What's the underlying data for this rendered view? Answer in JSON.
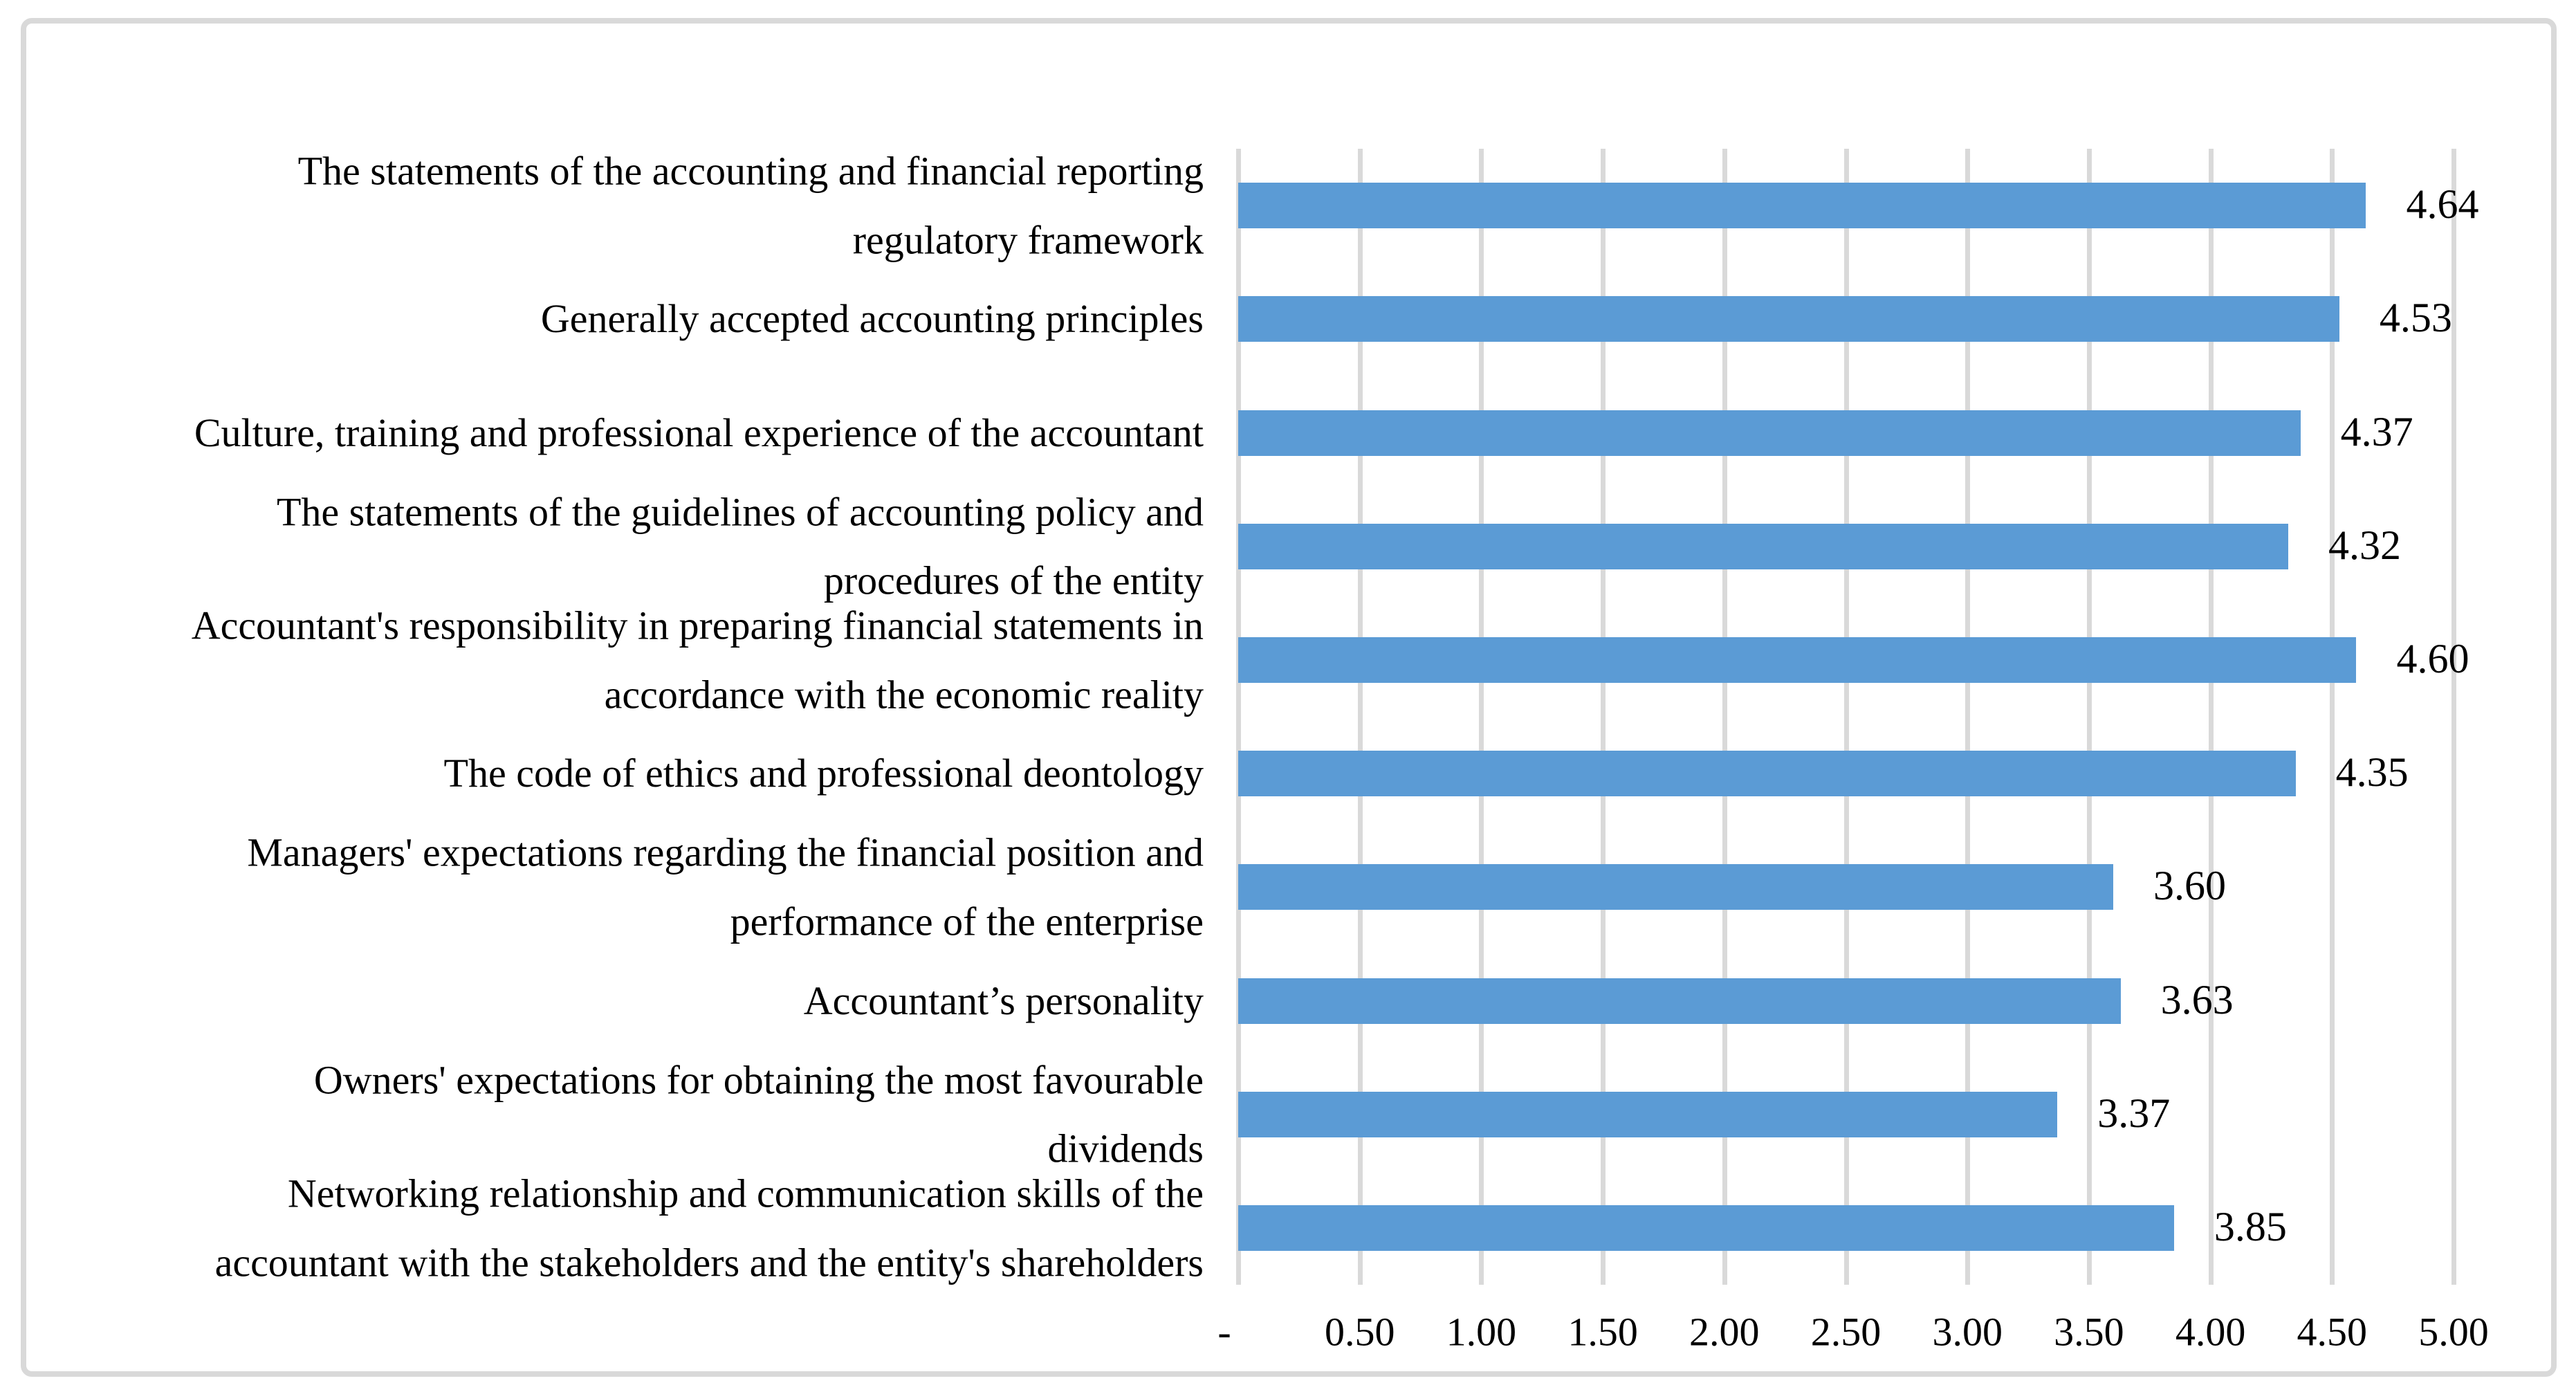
{
  "figure": {
    "background_color": "#FFFFFF",
    "border_color": "#D9D9D9",
    "text_color": "#000000"
  },
  "chart_data": {
    "type": "bar",
    "orientation": "horizontal",
    "title": "",
    "xlabel": "",
    "ylabel": "",
    "grid": "vertical",
    "legend": "none",
    "xlim": [
      0,
      5
    ],
    "x_tick_step": 0.5,
    "x_ticks": [
      "-",
      "0.50",
      "1.00",
      "1.50",
      "2.00",
      "2.50",
      "3.00",
      "3.50",
      "4.00",
      "4.50",
      "5.00"
    ],
    "bar_color": "#5B9BD5",
    "gridline_color": "#D9D9D9",
    "categories": [
      "The statements of the accounting and financial reporting\nregulatory framework",
      "Generally accepted accounting principles",
      "Culture, training and professional experience of the accountant",
      "The statements of the guidelines of accounting policy and\nprocedures of the entity",
      "Accountant's responsibility in preparing financial statements in\naccordance with the economic reality",
      "The code of ethics and professional deontology",
      "Managers' expectations regarding the financial position and\nperformance of the enterprise",
      "Accountant’s personality",
      "Owners' expectations for obtaining the most favourable\ndividends",
      "Networking relationship and communication skills of the\naccountant with the stakeholders and the entity's shareholders"
    ],
    "values": [
      4.64,
      4.53,
      4.37,
      4.32,
      4.6,
      4.35,
      3.6,
      3.63,
      3.37,
      3.85
    ],
    "value_labels": [
      "4.64",
      "4.53",
      "4.37",
      "4.32",
      "4.60",
      "4.35",
      "3.60",
      "3.63",
      "3.37",
      "3.85"
    ]
  }
}
